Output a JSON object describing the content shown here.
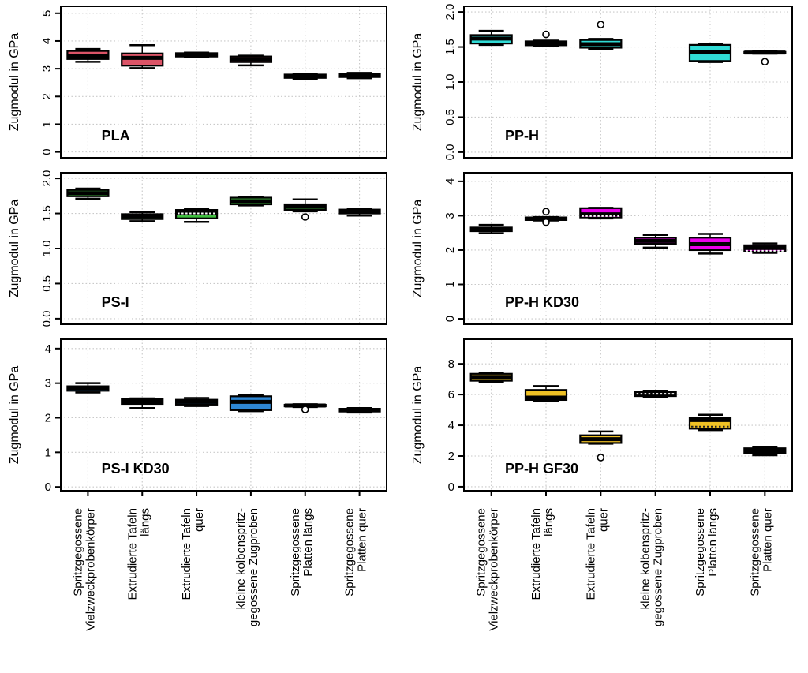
{
  "figure": {
    "background": "#ffffff",
    "y_axis_title": "Zugmodul in GPa"
  },
  "categories": [
    {
      "line1": "Spritzgegossene",
      "line2": "Vielzweckprobenkörper"
    },
    {
      "line1": "Extrudierte Tafeln",
      "line2": "längs"
    },
    {
      "line1": "Extrudierte Tafeln",
      "line2": "quer"
    },
    {
      "line1": "kleine kolbenspritz-",
      "line2": "gegossene Zugproben"
    },
    {
      "line1": "Spritzgegossene",
      "line2": "Platten längs"
    },
    {
      "line1": "Spritzgegossene",
      "line2": "Platten quer"
    }
  ],
  "chart_data": [
    {
      "type": "box",
      "label": "PLA",
      "color": "#DB5467",
      "ylabel": "Zugmodul in GPa",
      "yticks": [
        0,
        1,
        2,
        3,
        4,
        5
      ],
      "ytick_labels": [
        "0",
        "1",
        "2",
        "3",
        "4",
        "5"
      ],
      "range": [
        -0.21,
        5.25
      ],
      "ytick_rotated": true,
      "grid": true,
      "boxes": [
        {
          "low": 3.25,
          "q1": 3.35,
          "med": 3.47,
          "q3": 3.64,
          "high": 3.71
        },
        {
          "low": 3.02,
          "q1": 3.11,
          "med": 3.39,
          "q3": 3.55,
          "high": 3.85
        },
        {
          "low": 3.41,
          "q1": 3.44,
          "med": 3.49,
          "q3": 3.56,
          "high": 3.58
        },
        {
          "low": 3.12,
          "q1": 3.24,
          "med": 3.34,
          "q3": 3.44,
          "high": 3.47
        },
        {
          "low": 2.62,
          "q1": 2.67,
          "med": 2.74,
          "q3": 2.79,
          "high": 2.82
        },
        {
          "low": 2.66,
          "q1": 2.7,
          "med": 2.76,
          "q3": 2.82,
          "high": 2.85
        }
      ]
    },
    {
      "type": "box",
      "label": "PP-H",
      "color": "#30DBD5",
      "ylabel": "Zugmodul in GPa",
      "yticks": [
        0.0,
        0.5,
        1.0,
        1.5,
        2.0
      ],
      "ytick_labels": [
        "0.0",
        "0.5",
        "1.0",
        "1.5",
        "2.0"
      ],
      "range": [
        -0.08,
        2.08
      ],
      "ytick_rotated": true,
      "grid": true,
      "boxes": [
        {
          "low": 1.53,
          "q1": 1.55,
          "med": 1.62,
          "q3": 1.67,
          "high": 1.73
        },
        {
          "low": 1.52,
          "q1": 1.525,
          "med": 1.55,
          "q3": 1.58,
          "high": 1.59,
          "outliers": [
            1.68
          ]
        },
        {
          "low": 1.47,
          "q1": 1.49,
          "med": 1.54,
          "q3": 1.6,
          "high": 1.615,
          "outliers": [
            1.82
          ]
        },
        null,
        {
          "low": 1.285,
          "q1": 1.3,
          "med": 1.43,
          "q3": 1.53,
          "high": 1.54
        },
        {
          "low": 1.405,
          "q1": 1.41,
          "med": 1.42,
          "q3": 1.43,
          "high": 1.44,
          "outliers": [
            1.29
          ]
        }
      ]
    },
    {
      "type": "box",
      "label": "PS-I",
      "color": "#3FBD3F",
      "ylabel": "Zugmodul in GPa",
      "yticks": [
        0.0,
        0.5,
        1.0,
        1.5,
        2.0
      ],
      "ytick_labels": [
        "0.0",
        "0.5",
        "1.0",
        "1.5",
        "2.0"
      ],
      "range": [
        -0.08,
        2.08
      ],
      "ytick_rotated": true,
      "grid": true,
      "boxes": [
        {
          "low": 1.71,
          "q1": 1.745,
          "med": 1.79,
          "q3": 1.835,
          "high": 1.855
        },
        {
          "low": 1.39,
          "q1": 1.42,
          "med": 1.46,
          "q3": 1.49,
          "high": 1.52
        },
        {
          "low": 1.38,
          "q1": 1.43,
          "med": 1.5,
          "q3": 1.55,
          "high": 1.56,
          "dotted": {
            "v": 1.5,
            "color": "#ffffff"
          }
        },
        {
          "low": 1.615,
          "q1": 1.63,
          "med": 1.675,
          "q3": 1.725,
          "high": 1.74
        },
        {
          "low": 1.53,
          "q1": 1.55,
          "med": 1.595,
          "q3": 1.63,
          "high": 1.7,
          "outliers": [
            1.45
          ]
        },
        {
          "low": 1.47,
          "q1": 1.5,
          "med": 1.53,
          "q3": 1.555,
          "high": 1.565
        }
      ]
    },
    {
      "type": "box",
      "label": "PP-H KD30",
      "color": "#EB00EB",
      "ylabel": "Zugmodul in GPa",
      "yticks": [
        0,
        1,
        2,
        3,
        4
      ],
      "ytick_labels": [
        "0",
        "1",
        "2",
        "3",
        "4"
      ],
      "range": [
        -0.16,
        4.25
      ],
      "ytick_rotated": true,
      "grid": true,
      "boxes": [
        {
          "low": 2.49,
          "q1": 2.55,
          "med": 2.6,
          "q3": 2.655,
          "high": 2.73
        },
        {
          "low": 2.86,
          "q1": 2.875,
          "med": 2.91,
          "q3": 2.95,
          "high": 2.96,
          "outliers": [
            3.12,
            2.81
          ]
        },
        {
          "low": 2.92,
          "q1": 2.95,
          "med": 3.04,
          "q3": 3.22,
          "high": 3.23,
          "dotted": {
            "v": 2.99,
            "color": "#ffffff"
          }
        },
        {
          "low": 2.07,
          "q1": 2.18,
          "med": 2.265,
          "q3": 2.36,
          "high": 2.44
        },
        {
          "low": 1.9,
          "q1": 2.0,
          "med": 2.17,
          "q3": 2.36,
          "high": 2.47
        },
        {
          "low": 1.92,
          "q1": 1.96,
          "med": 2.06,
          "q3": 2.14,
          "high": 2.19,
          "dotted": {
            "v": 1.98,
            "color": "#ffffff"
          }
        }
      ]
    },
    {
      "type": "box",
      "label": "PS-I KD30",
      "color": "#2E86D3",
      "ylabel": "Zugmodul in GPa",
      "yticks": [
        0,
        1,
        2,
        3,
        4
      ],
      "ytick_labels": [
        "0",
        "1",
        "2",
        "3",
        "4"
      ],
      "range": [
        -0.11,
        4.27
      ],
      "ytick_rotated": false,
      "grid": true,
      "boxes": [
        {
          "low": 2.73,
          "q1": 2.78,
          "med": 2.86,
          "q3": 2.91,
          "high": 3.0
        },
        {
          "low": 2.28,
          "q1": 2.4,
          "med": 2.47,
          "q3": 2.54,
          "high": 2.56
        },
        {
          "low": 2.34,
          "q1": 2.38,
          "med": 2.46,
          "q3": 2.52,
          "high": 2.57
        },
        {
          "low": 2.19,
          "q1": 2.22,
          "med": 2.46,
          "q3": 2.62,
          "high": 2.65
        },
        {
          "low": 2.31,
          "q1": 2.33,
          "med": 2.355,
          "q3": 2.375,
          "high": 2.39,
          "outliers": [
            2.24
          ]
        },
        {
          "low": 2.15,
          "q1": 2.18,
          "med": 2.22,
          "q3": 2.26,
          "high": 2.28
        }
      ]
    },
    {
      "type": "box",
      "label": "PP-H GF30",
      "color": "#EFC125",
      "ylabel": "Zugmodul in GPa",
      "yticks": [
        0,
        2,
        4,
        6,
        8
      ],
      "ytick_labels": [
        "0",
        "2",
        "4",
        "6",
        "8"
      ],
      "range": [
        -0.26,
        9.6
      ],
      "ytick_rotated": false,
      "grid": true,
      "boxes": [
        {
          "low": 6.8,
          "q1": 6.9,
          "med": 7.15,
          "q3": 7.35,
          "high": 7.4
        },
        {
          "low": 5.6,
          "q1": 5.65,
          "med": 5.8,
          "q3": 6.3,
          "high": 6.55
        },
        {
          "low": 2.8,
          "q1": 2.85,
          "med": 3.1,
          "q3": 3.35,
          "high": 3.6,
          "outliers": [
            1.9
          ]
        },
        {
          "low": 5.85,
          "q1": 5.9,
          "med": 6.05,
          "q3": 6.2,
          "high": 6.25,
          "dotted": {
            "v": 6.05,
            "color": "#ffffff"
          }
        },
        {
          "low": 3.69,
          "q1": 3.78,
          "med": 4.34,
          "q3": 4.5,
          "high": 4.68,
          "dotted": {
            "v": 3.91,
            "color": "#222222"
          }
        },
        {
          "low": 2.05,
          "q1": 2.2,
          "med": 2.35,
          "q3": 2.5,
          "high": 2.6
        }
      ]
    }
  ]
}
